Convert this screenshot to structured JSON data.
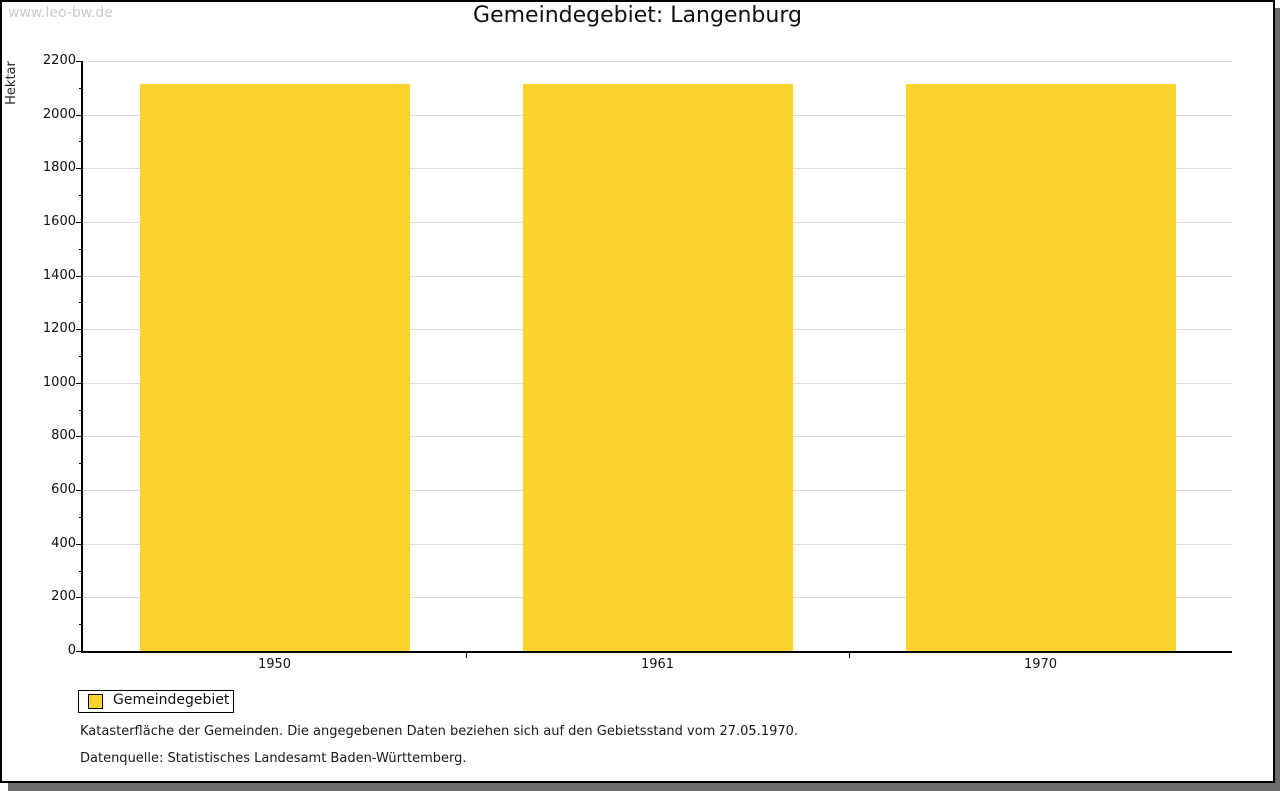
{
  "watermark": "www.leo-bw.de",
  "title": "Gemeindegebiet: Langenburg",
  "legend": {
    "label": "Gemeindegebiet",
    "swatch_color": "#fcd32d"
  },
  "footnotes": [
    "Katasterfläche der Gemeinden. Die angegebenen Daten beziehen sich auf den Gebietsstand vom 27.05.1970.",
    "Datenquelle: Statistisches Landesamt Baden-Württemberg."
  ],
  "chart_data": {
    "type": "bar",
    "title": "Gemeindegebiet: Langenburg",
    "categories": [
      "1950",
      "1961",
      "1970"
    ],
    "series": [
      {
        "name": "Gemeindegebiet",
        "values": [
          2113,
          2113,
          2113
        ],
        "color": "#fcd32d"
      }
    ],
    "xlabel": "",
    "ylabel": "Hektar",
    "ylim": [
      0,
      2200
    ],
    "ytick_step": 200,
    "yminor_step": 100,
    "grid": true,
    "legend_position": "bottom-left"
  },
  "colors": {
    "bar": "#fcd32d",
    "grid": "#dcdcdc",
    "axis": "#000000",
    "watermark": "#cbcbcb",
    "shadow": "#6b6b6b",
    "page_border": "#000000"
  }
}
